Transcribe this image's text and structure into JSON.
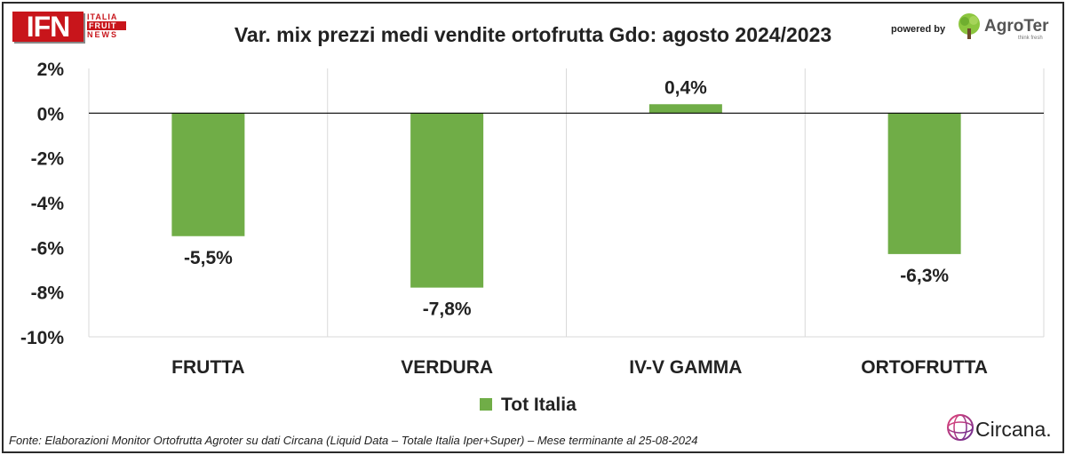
{
  "header": {
    "logo_main": "IFN",
    "logo_line1": "ITALIA",
    "logo_line2": "FRUIT",
    "logo_line3": "NEWS",
    "title": "Var. mix prezzi medi vendite ortofrutta Gdo: agosto 2024/2023",
    "powered_by": "powered by",
    "partner_logo": "AgroTer",
    "partner_tagline": "think fresh"
  },
  "chart_data": {
    "type": "bar",
    "categories": [
      "FRUTTA",
      "VERDURA",
      "IV-V GAMMA",
      "ORTOFRUTTA"
    ],
    "series": [
      {
        "name": "Tot Italia",
        "values": [
          -5.5,
          -7.8,
          0.4,
          -6.3
        ],
        "labels": [
          "-5,5%",
          "-7,8%",
          "0,4%",
          "-6,3%"
        ],
        "color": "#70ad47"
      }
    ],
    "yticks": [
      "2%",
      "0%",
      "-2%",
      "-4%",
      "-6%",
      "-8%",
      "-10%"
    ],
    "ytick_values": [
      2,
      0,
      -2,
      -4,
      -6,
      -8,
      -10
    ],
    "ylim": [
      -10,
      2
    ],
    "legend_position": "bottom",
    "grid": "vertical category separators"
  },
  "footer": {
    "source": "Fonte: Elaborazioni Monitor Ortofrutta Agroter su dati Circana (Liquid Data – Totale Italia Iper+Super) – Mese terminante al 25-08-2024",
    "brand": "Circana."
  }
}
